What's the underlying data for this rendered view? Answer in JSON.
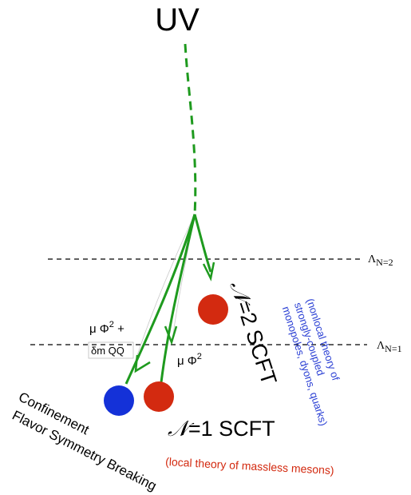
{
  "top_label": "UV",
  "scales": {
    "n2": {
      "symbol": "Λ",
      "subscript": "N=2"
    },
    "n1": {
      "symbol": "Λ",
      "subscript": "N=1"
    }
  },
  "deformations": {
    "left_line1": "μ Φ",
    "left_line1_exp": "2",
    "left_line1_plus": " +",
    "left_line2": "δm QQ",
    "right": "μ Φ",
    "right_exp": "2"
  },
  "fixed_points": {
    "n2_scft": {
      "title_script": "𝒩",
      "title_rest": "=2 SCFT",
      "note_lines": [
        "(nonlocal theory of",
        "strongly-coupled",
        "monopoles, dyons, quarks)"
      ],
      "color": "#d32a10"
    },
    "n1_scft": {
      "title_script": "𝒩",
      "title_rest": "=1 SCFT",
      "note": "(local theory of massless mesons)",
      "color": "#d32a10"
    },
    "confinement": {
      "line1": "Confinement",
      "line2": "Flavor Symmetry Breaking",
      "color": "#1431d8"
    }
  },
  "colors": {
    "flow": "#1e9a1e",
    "note_blue": "#2a3fd4",
    "note_red": "#d32a10",
    "text": "#000000"
  }
}
